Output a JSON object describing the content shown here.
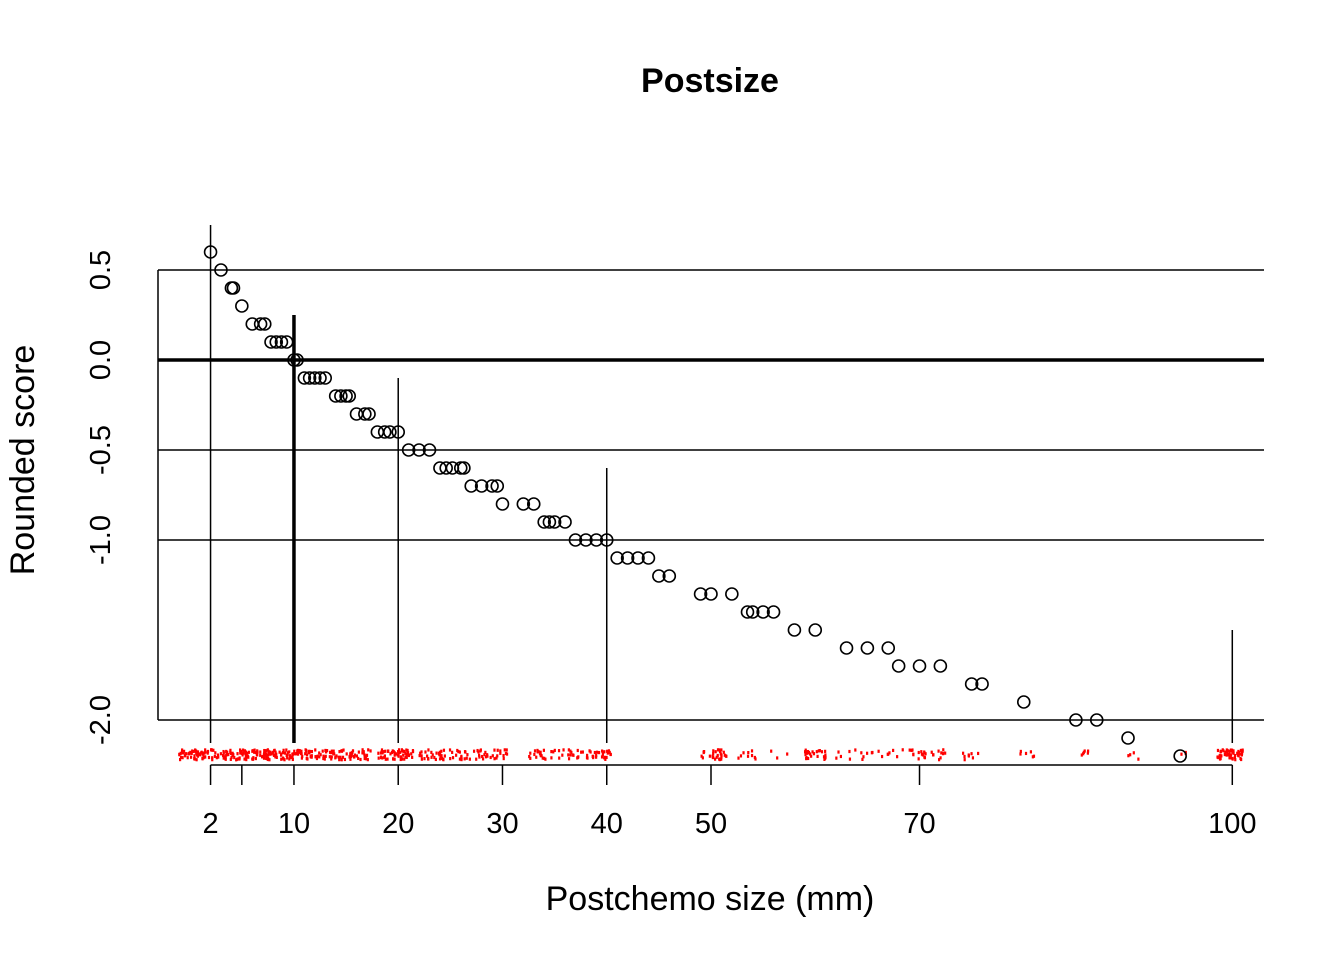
{
  "chart_data": {
    "type": "scatter",
    "title": "Postsize",
    "xlabel": "Postchemo size (mm)",
    "ylabel": "Rounded score",
    "xlim": [
      -4,
      104
    ],
    "ylim": [
      -2.25,
      0.75
    ],
    "x_ticks": [
      {
        "value": 2,
        "label": "2"
      },
      {
        "value": 5,
        "label": ""
      },
      {
        "value": 10,
        "label": "10"
      },
      {
        "value": 20,
        "label": "20"
      },
      {
        "value": 30,
        "label": "30"
      },
      {
        "value": 40,
        "label": "40"
      },
      {
        "value": 50,
        "label": "50"
      },
      {
        "value": 70,
        "label": "70"
      },
      {
        "value": 100,
        "label": "100"
      }
    ],
    "y_ticks": [
      {
        "value": 0.5,
        "label": "0.5"
      },
      {
        "value": 0.0,
        "label": "0.0"
      },
      {
        "value": -0.5,
        "label": "-0.5"
      },
      {
        "value": -1.0,
        "label": "-1.0"
      },
      {
        "value": -2.0,
        "label": "-2.0"
      }
    ],
    "horizontal_lines": [
      {
        "y": 0.5,
        "bold": false
      },
      {
        "y": 0.0,
        "bold": true
      },
      {
        "y": -0.5,
        "bold": false
      },
      {
        "y": -1.0,
        "bold": false
      },
      {
        "y": -2.0,
        "bold": false
      }
    ],
    "vertical_lines": [
      {
        "x": 2,
        "y_top": 0.75,
        "bold": false
      },
      {
        "x": 10,
        "y_top": 0.25,
        "bold": true
      },
      {
        "x": 20,
        "y_top": -0.1,
        "bold": false
      },
      {
        "x": 40,
        "y_top": -0.6,
        "bold": false
      },
      {
        "x": 100,
        "y_top": -1.5,
        "bold": false
      }
    ],
    "points": [
      [
        2,
        0.6
      ],
      [
        3,
        0.5
      ],
      [
        4,
        0.4
      ],
      [
        4.2,
        0.4
      ],
      [
        5,
        0.3
      ],
      [
        6,
        0.2
      ],
      [
        6.8,
        0.2
      ],
      [
        7.2,
        0.2
      ],
      [
        7.8,
        0.1
      ],
      [
        8.3,
        0.1
      ],
      [
        8.8,
        0.1
      ],
      [
        9.3,
        0.1
      ],
      [
        10,
        0.0
      ],
      [
        10.3,
        0.0
      ],
      [
        11,
        -0.1
      ],
      [
        11.5,
        -0.1
      ],
      [
        12,
        -0.1
      ],
      [
        12.5,
        -0.1
      ],
      [
        13,
        -0.1
      ],
      [
        14,
        -0.2
      ],
      [
        14.5,
        -0.2
      ],
      [
        15,
        -0.2
      ],
      [
        15.3,
        -0.2
      ],
      [
        16,
        -0.3
      ],
      [
        16.8,
        -0.3
      ],
      [
        17.2,
        -0.3
      ],
      [
        18,
        -0.4
      ],
      [
        18.7,
        -0.4
      ],
      [
        19.2,
        -0.4
      ],
      [
        20,
        -0.4
      ],
      [
        21,
        -0.5
      ],
      [
        22,
        -0.5
      ],
      [
        23,
        -0.5
      ],
      [
        24,
        -0.6
      ],
      [
        24.6,
        -0.6
      ],
      [
        25.2,
        -0.6
      ],
      [
        26,
        -0.6
      ],
      [
        26.3,
        -0.6
      ],
      [
        27,
        -0.7
      ],
      [
        28,
        -0.7
      ],
      [
        29,
        -0.7
      ],
      [
        29.5,
        -0.7
      ],
      [
        30,
        -0.8
      ],
      [
        32,
        -0.8
      ],
      [
        33,
        -0.8
      ],
      [
        34,
        -0.9
      ],
      [
        34.5,
        -0.9
      ],
      [
        35,
        -0.9
      ],
      [
        36,
        -0.9
      ],
      [
        37,
        -1.0
      ],
      [
        38,
        -1.0
      ],
      [
        39,
        -1.0
      ],
      [
        40,
        -1.0
      ],
      [
        41,
        -1.1
      ],
      [
        42,
        -1.1
      ],
      [
        43,
        -1.1
      ],
      [
        44,
        -1.1
      ],
      [
        45,
        -1.2
      ],
      [
        46,
        -1.2
      ],
      [
        49,
        -1.3
      ],
      [
        50,
        -1.3
      ],
      [
        52,
        -1.3
      ],
      [
        53.5,
        -1.4
      ],
      [
        54,
        -1.4
      ],
      [
        55,
        -1.4
      ],
      [
        56,
        -1.4
      ],
      [
        58,
        -1.5
      ],
      [
        60,
        -1.5
      ],
      [
        63,
        -1.6
      ],
      [
        65,
        -1.6
      ],
      [
        67,
        -1.6
      ],
      [
        68,
        -1.7
      ],
      [
        70,
        -1.7
      ],
      [
        72,
        -1.7
      ],
      [
        75,
        -1.8
      ],
      [
        76,
        -1.8
      ],
      [
        80,
        -1.9
      ],
      [
        85,
        -2.0
      ],
      [
        87,
        -2.0
      ],
      [
        90,
        -2.1
      ],
      [
        95,
        -2.2
      ]
    ],
    "rug": {
      "color": "#ff0000",
      "y_value": -2.19,
      "clusters": [
        {
          "from": -1,
          "to": 17.5,
          "count": 300
        },
        {
          "from": 18,
          "to": 21.5,
          "count": 60
        },
        {
          "from": 22,
          "to": 30.5,
          "count": 80
        },
        {
          "from": 32.5,
          "to": 40.5,
          "count": 70
        },
        {
          "from": 49,
          "to": 51.5,
          "count": 30
        },
        {
          "from": 52.5,
          "to": 58,
          "count": 12
        },
        {
          "from": 59,
          "to": 61,
          "count": 25
        },
        {
          "from": 62,
          "to": 69,
          "count": 20
        },
        {
          "from": 69,
          "to": 72.5,
          "count": 25
        },
        {
          "from": 74,
          "to": 76,
          "count": 8
        },
        {
          "from": 79.5,
          "to": 81,
          "count": 6
        },
        {
          "from": 85,
          "to": 87,
          "count": 6
        },
        {
          "from": 89,
          "to": 91,
          "count": 4
        },
        {
          "from": 95,
          "to": 96,
          "count": 3
        },
        {
          "from": 98.5,
          "to": 101,
          "count": 60
        }
      ]
    }
  }
}
